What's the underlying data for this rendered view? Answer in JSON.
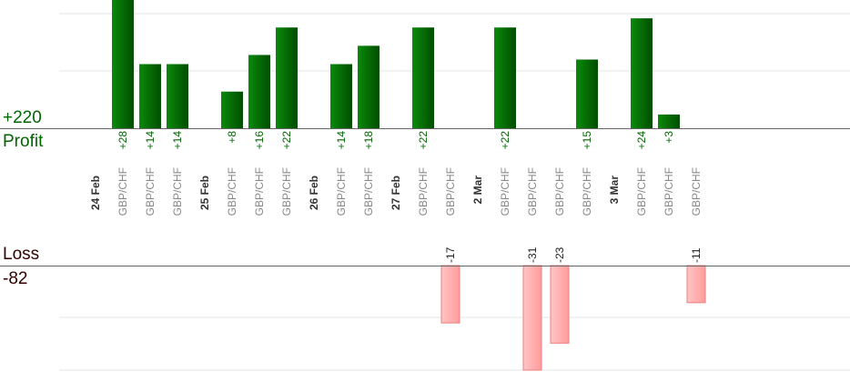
{
  "summary": {
    "profit_label": "Profit",
    "profit_total": "+220",
    "loss_label": "Loss",
    "loss_total": "-82"
  },
  "colors": {
    "profit_bar": "#006600",
    "profit_text": "#006600",
    "loss_bar": "#ffb3b3",
    "loss_edge": "#e88080",
    "loss_text": "#222222",
    "pair_text": "#888888",
    "date_text": "#333333",
    "baseline": "#666666",
    "grid": "#e6e6e6"
  },
  "chart_data": {
    "type": "bar",
    "ylim_profit": [
      0,
      28
    ],
    "ylim_loss": [
      0,
      31
    ],
    "grid": true,
    "categories": [
      {
        "kind": "date",
        "label": "24 Feb"
      },
      {
        "kind": "trade",
        "label": "GBP/CHF",
        "value": 28,
        "text": "+28"
      },
      {
        "kind": "trade",
        "label": "GBP/CHF",
        "value": 14,
        "text": "+14"
      },
      {
        "kind": "trade",
        "label": "GBP/CHF",
        "value": 14,
        "text": "+14"
      },
      {
        "kind": "date",
        "label": "25 Feb"
      },
      {
        "kind": "trade",
        "label": "GBP/CHF",
        "value": 8,
        "text": "+8"
      },
      {
        "kind": "trade",
        "label": "GBP/CHF",
        "value": 16,
        "text": "+16"
      },
      {
        "kind": "trade",
        "label": "GBP/CHF",
        "value": 22,
        "text": "+22"
      },
      {
        "kind": "date",
        "label": "26 Feb"
      },
      {
        "kind": "trade",
        "label": "GBP/CHF",
        "value": 14,
        "text": "+14"
      },
      {
        "kind": "trade",
        "label": "GBP/CHF",
        "value": 18,
        "text": "+18"
      },
      {
        "kind": "date",
        "label": "27 Feb"
      },
      {
        "kind": "trade",
        "label": "GBP/CHF",
        "value": 22,
        "text": "+22"
      },
      {
        "kind": "trade",
        "label": "GBP/CHF",
        "value": -17,
        "text": "-17"
      },
      {
        "kind": "date",
        "label": "2 Mar"
      },
      {
        "kind": "trade",
        "label": "GBP/CHF",
        "value": 22,
        "text": "+22"
      },
      {
        "kind": "trade",
        "label": "GBP/CHF",
        "value": -31,
        "text": "-31"
      },
      {
        "kind": "trade",
        "label": "GBP/CHF",
        "value": -23,
        "text": "-23"
      },
      {
        "kind": "trade",
        "label": "GBP/CHF",
        "value": 15,
        "text": "+15"
      },
      {
        "kind": "date",
        "label": "3 Mar"
      },
      {
        "kind": "trade",
        "label": "GBP/CHF",
        "value": 24,
        "text": "+24"
      },
      {
        "kind": "trade",
        "label": "GBP/CHF",
        "value": 3,
        "text": "+3"
      },
      {
        "kind": "trade",
        "label": "GBP/CHF",
        "value": -11,
        "text": "-11"
      }
    ]
  }
}
